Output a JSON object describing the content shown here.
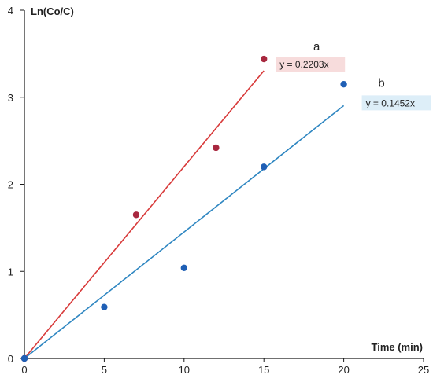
{
  "chart_data": {
    "type": "scatter",
    "xlabel": "Time (min)",
    "ylabel": "Ln(Co/C)",
    "xlim": [
      0,
      25
    ],
    "ylim": [
      0,
      4
    ],
    "x_ticks": [
      "0",
      "5",
      "10",
      "15",
      "20",
      "25"
    ],
    "y_ticks": [
      "0",
      "1",
      "2",
      "3",
      "4"
    ],
    "grid": false,
    "series": [
      {
        "name": "a",
        "color": "#a8283f",
        "line_color": "#d83a3a",
        "equation": "y = 0.2203x",
        "equation_bg": "#f7dcdc",
        "slope": 0.2203,
        "trend_x_range": [
          0,
          15
        ],
        "points": [
          {
            "x": 0,
            "y": 0
          },
          {
            "x": 7,
            "y": 1.65
          },
          {
            "x": 12,
            "y": 2.42
          },
          {
            "x": 15,
            "y": 3.44
          }
        ]
      },
      {
        "name": "b",
        "color": "#1f5fb5",
        "line_color": "#2e86c1",
        "equation": "y = 0.1452x",
        "equation_bg": "#ddeef8",
        "slope": 0.1452,
        "trend_x_range": [
          0,
          20
        ],
        "points": [
          {
            "x": 0,
            "y": 0
          },
          {
            "x": 5,
            "y": 0.59
          },
          {
            "x": 10,
            "y": 1.04
          },
          {
            "x": 15,
            "y": 2.2
          },
          {
            "x": 20,
            "y": 3.15
          }
        ]
      }
    ]
  }
}
